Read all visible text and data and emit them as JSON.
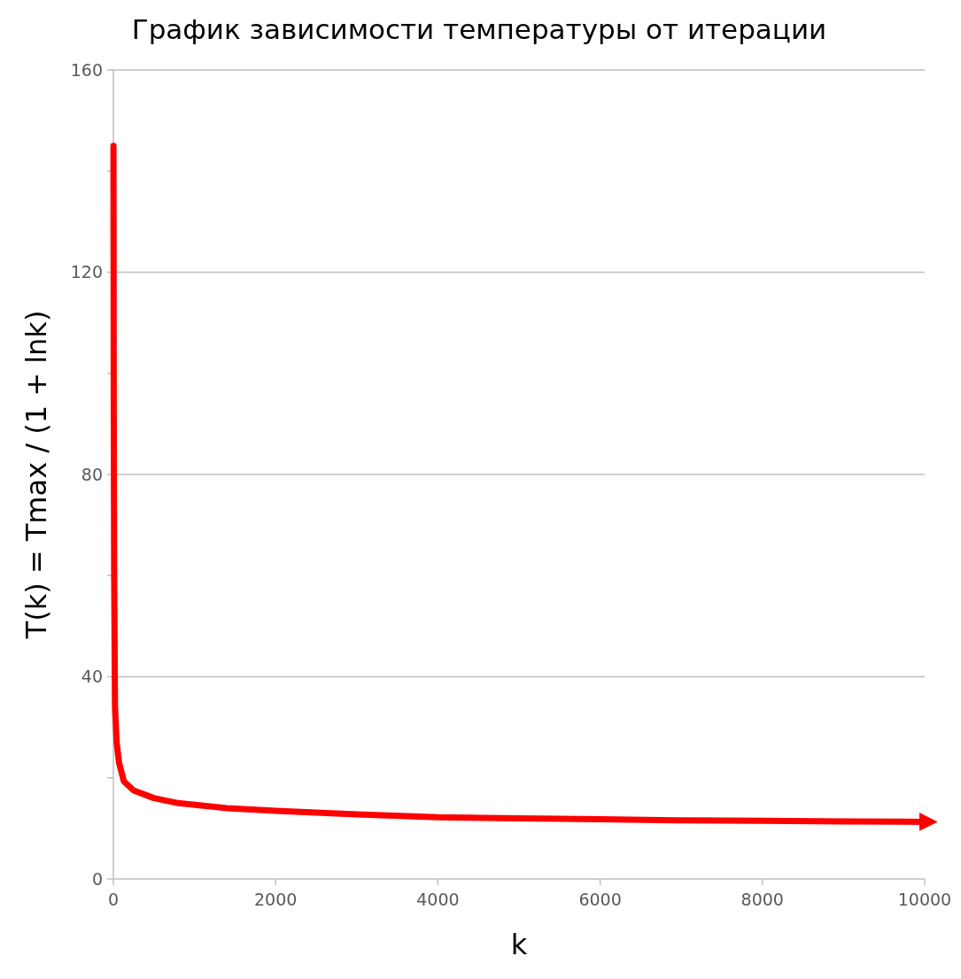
{
  "chart_data": {
    "type": "line",
    "title": "График зависимости температуры от итерации",
    "xlabel": "k",
    "ylabel": "T(k) = Tmax / (1 + lnk)",
    "x": [
      1,
      5,
      10,
      20,
      40,
      70,
      130,
      250,
      500,
      800,
      1400,
      2000,
      3000,
      4000,
      5000,
      6000,
      7000,
      8000,
      9000,
      10000
    ],
    "series": [
      {
        "color": "#ff0000",
        "values": [
          145,
          91,
          60,
          34,
          27,
          23,
          19.3,
          17.5,
          16,
          15,
          14,
          13.5,
          12.8,
          12.2,
          12,
          11.8,
          11.6,
          11.5,
          11.4,
          11.3
        ]
      }
    ],
    "xlim": [
      0,
      10000
    ],
    "xticks": [
      0,
      2000,
      4000,
      6000,
      8000,
      10000
    ],
    "ylim": [
      0,
      160
    ],
    "yticks": [
      0,
      {
        "value": 20,
        "label": null
      },
      40,
      {
        "value": 60,
        "label": null
      },
      80,
      {
        "value": 100,
        "label": null
      },
      120,
      {
        "value": 140,
        "label": null
      },
      160
    ],
    "grid": "y",
    "marker": "none",
    "line_style": "solid"
  }
}
